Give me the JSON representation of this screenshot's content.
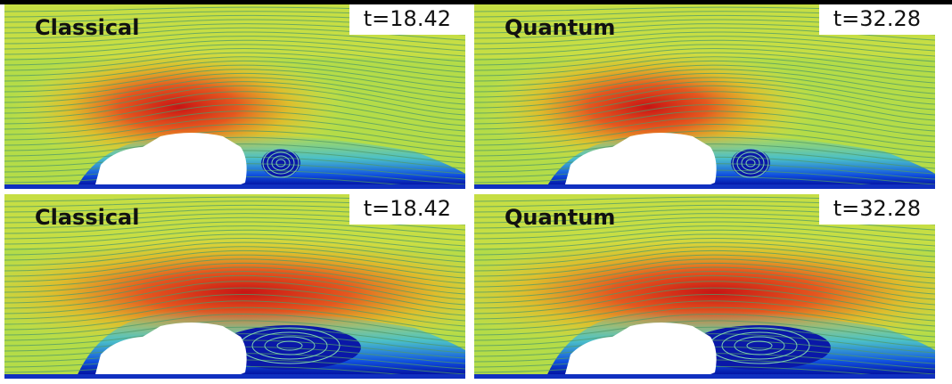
{
  "panels": [
    {
      "label": "Classical",
      "time": "t=18.42"
    },
    {
      "label": "Quantum",
      "time": "t=32.28"
    },
    {
      "label": "Classical",
      "time": "t=18.42"
    },
    {
      "label": "Quantum",
      "time": "t=32.28"
    }
  ]
}
